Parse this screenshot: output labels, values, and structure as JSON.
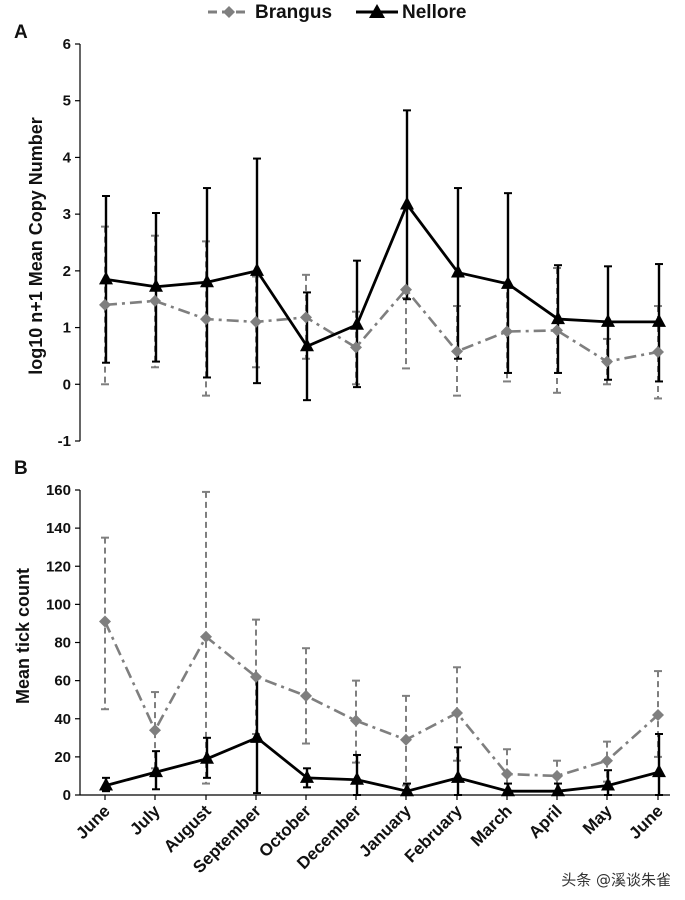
{
  "legend": {
    "brangus": "Brangus",
    "nellore": "Nellore"
  },
  "watermark": "头条 @溪谈朱雀",
  "colors": {
    "brangus": "#7f7f7f",
    "nellore": "#000000"
  },
  "chart_data": [
    {
      "panel_label": "A",
      "type": "line",
      "ylabel": "log10 n+1 Mean Copy Number",
      "xlabel": "",
      "ylim": [
        -1,
        6
      ],
      "yticks": [
        "-1",
        "0",
        "1",
        "2",
        "3",
        "4",
        "5",
        "6"
      ],
      "grid": false,
      "legend_position": "top-center",
      "series": [
        {
          "name": "Brangus",
          "values": [
            1.4,
            1.47,
            1.15,
            1.1,
            1.18,
            0.65,
            1.67,
            0.58,
            0.93,
            0.95,
            0.4,
            0.57
          ],
          "err_low": [
            0.0,
            0.3,
            -0.2,
            0.3,
            0.45,
            0.0,
            0.28,
            -0.2,
            0.05,
            -0.15,
            0.0,
            -0.25
          ],
          "err_high": [
            2.78,
            2.62,
            2.52,
            1.9,
            1.93,
            1.28,
            1.52,
            1.38,
            1.8,
            2.05,
            0.8,
            1.38
          ]
        },
        {
          "name": "Nellore",
          "values": [
            1.85,
            1.72,
            1.8,
            2.0,
            0.67,
            1.05,
            3.17,
            1.97,
            1.77,
            1.15,
            1.1,
            1.1
          ],
          "err_low": [
            0.38,
            0.4,
            0.12,
            0.02,
            -0.28,
            -0.05,
            1.5,
            0.45,
            0.2,
            0.2,
            0.08,
            0.05
          ],
          "err_high": [
            3.32,
            3.02,
            3.46,
            3.98,
            1.62,
            2.18,
            4.83,
            3.46,
            3.37,
            2.1,
            2.08,
            2.12
          ]
        }
      ]
    },
    {
      "panel_label": "B",
      "type": "line",
      "ylabel": "Mean tick count",
      "xlabel": "",
      "categories": [
        "June",
        "July",
        "August",
        "September",
        "October",
        "December",
        "January",
        "February",
        "March",
        "April",
        "May",
        "June"
      ],
      "ylim": [
        0,
        160
      ],
      "yticks": [
        "0",
        "20",
        "40",
        "60",
        "80",
        "100",
        "120",
        "140",
        "160"
      ],
      "grid": false,
      "series": [
        {
          "name": "Brangus",
          "values": [
            91,
            34,
            83,
            62,
            52,
            39,
            29,
            43,
            11,
            10,
            18,
            42
          ],
          "err_low": [
            45,
            14,
            6,
            32,
            27,
            17,
            5,
            18,
            0,
            2,
            7,
            20
          ],
          "err_high": [
            135,
            54,
            159,
            92,
            77,
            60,
            52,
            67,
            24,
            18,
            28,
            65
          ]
        },
        {
          "name": "Nellore",
          "values": [
            5,
            12,
            19,
            30,
            9,
            8,
            2,
            9,
            2,
            2,
            5,
            12
          ],
          "err_low": [
            2,
            3,
            9,
            1,
            4,
            0,
            0,
            0,
            0,
            0,
            0,
            0
          ],
          "err_high": [
            9,
            23,
            30,
            62,
            14,
            21,
            6,
            25,
            6,
            6,
            13,
            32
          ]
        }
      ]
    }
  ]
}
